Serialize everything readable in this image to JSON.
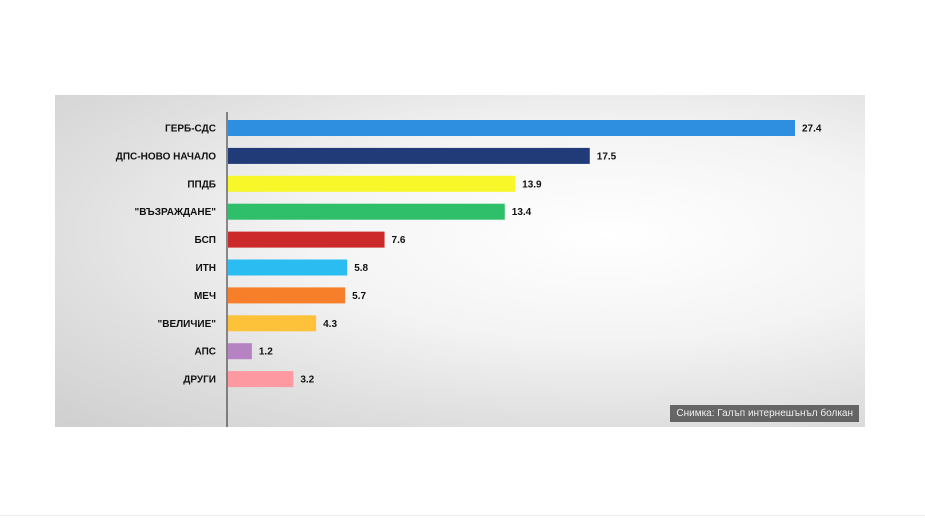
{
  "chart_data": {
    "type": "bar",
    "orientation": "horizontal",
    "title": "",
    "xlabel": "",
    "ylabel": "",
    "xlim": [
      0,
      27.4
    ],
    "grid": false,
    "categories": [
      "ГЕРБ-СДС",
      "ДПС-НОВО НАЧАЛО",
      "ППДБ",
      "\"ВЪЗРАЖДАНЕ\"",
      "БСП",
      "ИТН",
      "МЕЧ",
      "\"ВЕЛИЧИЕ\"",
      "АПС",
      "ДРУГИ"
    ],
    "values": [
      27.4,
      17.5,
      13.9,
      13.4,
      7.6,
      5.8,
      5.7,
      4.3,
      1.2,
      3.2
    ],
    "colors": [
      "#2e8fe0",
      "#213a78",
      "#f7f72a",
      "#2fbf6a",
      "#cc2a2a",
      "#2bbdf2",
      "#f77f2a",
      "#fdc23a",
      "#b583c2",
      "#fd9aa1"
    ]
  },
  "photo_credit": "Снимка: Галъп интернешънъл болкан"
}
